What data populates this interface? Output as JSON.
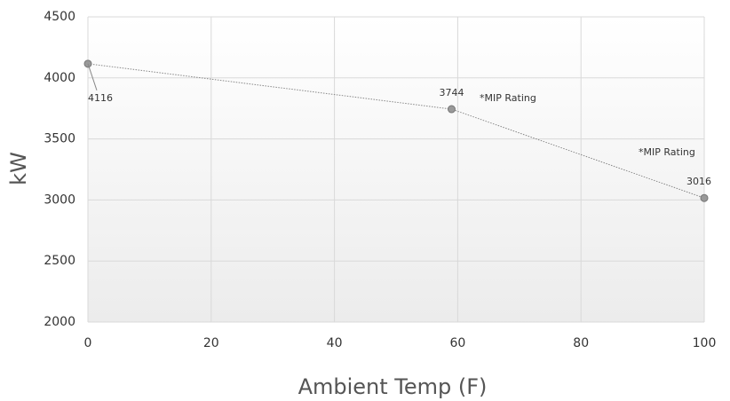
{
  "chart_data": {
    "type": "line",
    "x_label": "Ambient Temp (F)",
    "y_label": "kW",
    "x": [
      0,
      59,
      100
    ],
    "series": [
      {
        "name": "kW",
        "color": "#888888",
        "values": [
          4116,
          3744,
          3016
        ]
      }
    ],
    "annotations": [
      "*MIP Rating",
      "*MIP Rating"
    ],
    "xlim": [
      0,
      100
    ],
    "xticks": [
      0,
      20,
      40,
      60,
      80,
      100
    ],
    "ylim": [
      2000,
      4500
    ],
    "yticks": [
      2000,
      2500,
      3000,
      3500,
      4000,
      4500
    ],
    "grid": true
  }
}
